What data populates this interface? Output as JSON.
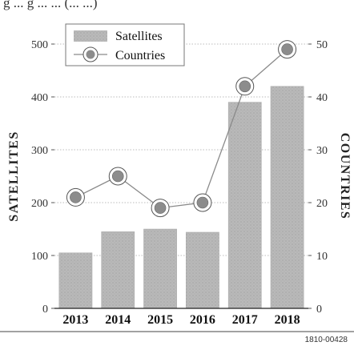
{
  "header_text": "g ... g ... ... (... ...)",
  "figure_id": "1810-00428",
  "colors": {
    "bar": "#b4b4b4",
    "line": "#8a8a8a",
    "marker_fill": "#8c8c8c",
    "marker_ring": "#ffffff",
    "grid": "#bdbdbd",
    "axis": "#555555",
    "text": "#333333"
  },
  "chart_data": {
    "type": "bar",
    "categories": [
      "2013",
      "2014",
      "2015",
      "2016",
      "2017",
      "2018"
    ],
    "series": [
      {
        "name": "Satellites",
        "type": "bar",
        "axis": "left",
        "values": [
          105,
          145,
          150,
          144,
          390,
          420
        ]
      },
      {
        "name": "Countries",
        "type": "line",
        "axis": "right",
        "values": [
          21,
          25,
          19,
          20,
          42,
          49
        ]
      }
    ],
    "left_axis": {
      "label": "SATELLITES",
      "range": [
        0,
        500
      ],
      "ticks": [
        0,
        100,
        200,
        300,
        400,
        500
      ]
    },
    "right_axis": {
      "label": "COUNTRIES",
      "range": [
        0,
        50
      ],
      "ticks": [
        0,
        10,
        20,
        30,
        40,
        50
      ]
    },
    "grid": true,
    "legend_position": "top-left",
    "title": "",
    "xlabel": ""
  }
}
